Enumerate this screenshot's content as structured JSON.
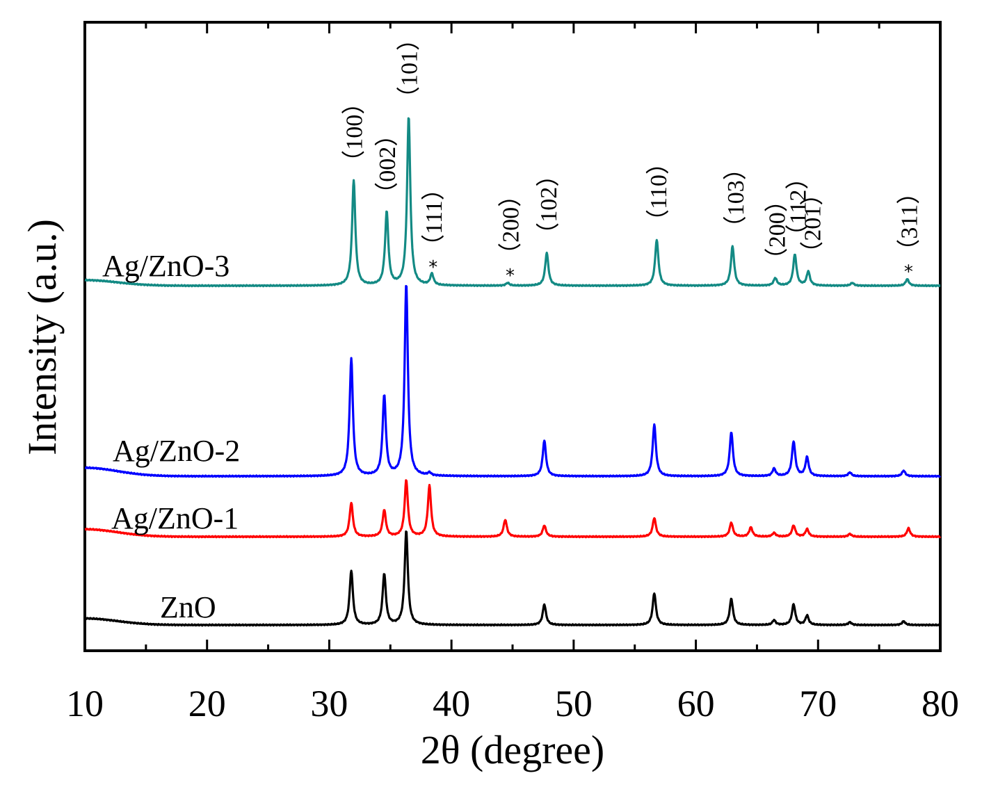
{
  "chart_data": {
    "type": "line",
    "title": "",
    "xlabel": "2θ (degree)",
    "ylabel": "Intensity (a.u.)",
    "xlim": [
      10,
      80
    ],
    "xticks": [
      10,
      20,
      30,
      40,
      50,
      60,
      70,
      80
    ],
    "xtick_labels": [
      "10",
      "20",
      "30",
      "40",
      "50",
      "60",
      "70",
      "80"
    ],
    "grid": false,
    "series": [
      {
        "name": "ZnO",
        "label": "ZnO",
        "color": "#000000",
        "offset": 0,
        "baseline_start": 7,
        "peaks": [
          [
            31.8,
            58
          ],
          [
            34.5,
            54
          ],
          [
            36.3,
            100
          ],
          [
            47.6,
            22
          ],
          [
            56.6,
            34
          ],
          [
            62.9,
            28
          ],
          [
            66.4,
            5
          ],
          [
            68.0,
            22
          ],
          [
            69.1,
            10
          ],
          [
            72.6,
            3
          ],
          [
            77.0,
            4
          ]
        ]
      },
      {
        "name": "Ag/ZnO-1",
        "label": "Ag/ZnO-1",
        "color": "#ff0000",
        "offset": 1,
        "baseline_start": 8,
        "peaks": [
          [
            31.8,
            36
          ],
          [
            34.5,
            28
          ],
          [
            36.3,
            60
          ],
          [
            38.2,
            54
          ],
          [
            44.4,
            18
          ],
          [
            47.6,
            12
          ],
          [
            56.6,
            20
          ],
          [
            62.9,
            15
          ],
          [
            64.5,
            10
          ],
          [
            66.4,
            4
          ],
          [
            68.0,
            12
          ],
          [
            69.1,
            8
          ],
          [
            72.6,
            3
          ],
          [
            77.4,
            9
          ]
        ]
      },
      {
        "name": "Ag/ZnO-2",
        "label": "Ag/ZnO-2",
        "color": "#0000ff",
        "offset": 2,
        "baseline_start": 9,
        "peaks": [
          [
            31.8,
            125
          ],
          [
            34.5,
            85
          ],
          [
            36.3,
            205
          ],
          [
            38.2,
            3
          ],
          [
            47.6,
            38
          ],
          [
            56.6,
            55
          ],
          [
            62.9,
            47
          ],
          [
            66.4,
            8
          ],
          [
            68.0,
            37
          ],
          [
            69.1,
            20
          ],
          [
            72.6,
            4
          ],
          [
            77.0,
            6
          ]
        ]
      },
      {
        "name": "Ag/ZnO-3",
        "label": "Ag/ZnO-3",
        "color": "#138a84",
        "offset": 3,
        "baseline_start": 6,
        "peaks": [
          [
            32.0,
            112
          ],
          [
            34.7,
            78
          ],
          [
            36.5,
            180
          ],
          [
            38.4,
            12
          ],
          [
            44.6,
            3
          ],
          [
            47.8,
            35
          ],
          [
            56.8,
            49
          ],
          [
            63.0,
            42
          ],
          [
            66.5,
            8
          ],
          [
            68.1,
            33
          ],
          [
            69.2,
            15
          ],
          [
            72.8,
            3
          ],
          [
            77.3,
            7
          ]
        ]
      }
    ],
    "annotations": [
      {
        "text": "（100）",
        "x": 32.0,
        "star": false
      },
      {
        "text": "（002）",
        "x": 34.7,
        "star": false
      },
      {
        "text": "（101）",
        "x": 36.5,
        "star": false
      },
      {
        "text": "（111）",
        "x": 38.5,
        "star": true
      },
      {
        "text": "（200）",
        "x": 44.8,
        "star": true
      },
      {
        "text": "（102）",
        "x": 47.9,
        "star": false
      },
      {
        "text": "（110）",
        "x": 56.9,
        "star": false
      },
      {
        "text": "（103）",
        "x": 63.2,
        "star": false
      },
      {
        "text": "（200）",
        "x": 66.6,
        "star": false
      },
      {
        "text": "（112）",
        "x": 68.3,
        "star": false
      },
      {
        "text": "（201）",
        "x": 69.5,
        "star": false
      },
      {
        "text": "（311）",
        "x": 77.4,
        "star": true
      }
    ],
    "star_symbol": "*"
  }
}
